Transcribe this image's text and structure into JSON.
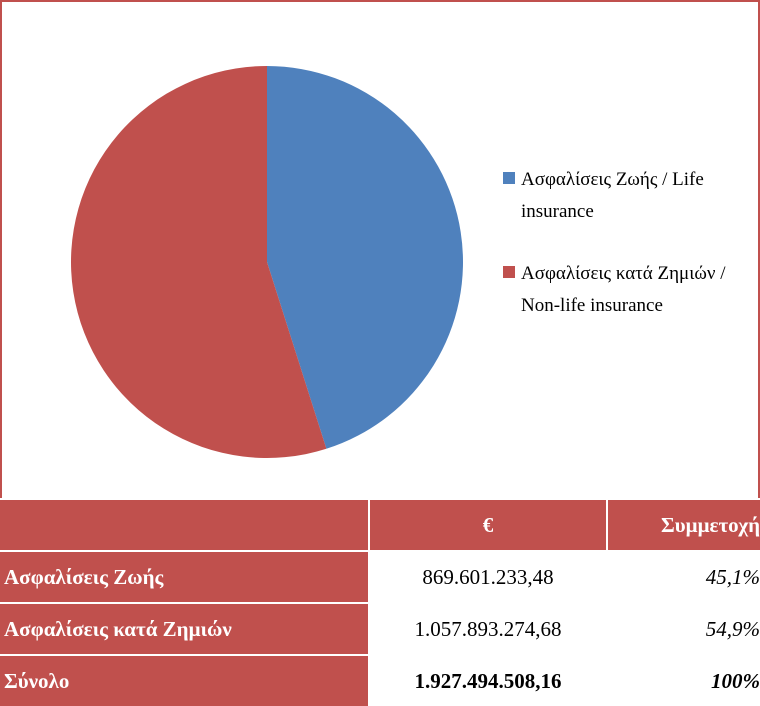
{
  "chart_data": {
    "type": "pie",
    "categories": [
      "Ασφαλίσεις Ζωής / Life insurance",
      "Ασφαλίσεις κατά Ζημιών / Non-life insurance"
    ],
    "values": [
      45.1,
      54.9
    ],
    "colors": [
      "#4f81bd",
      "#c0504d"
    ],
    "legend": "right"
  },
  "table": {
    "header": [
      "€",
      "Συμμετοχή"
    ],
    "rows": [
      [
        "Ασφαλίσεις Ζωής",
        "869.601.233,48",
        "45,1%"
      ],
      [
        "Ασφαλίσεις κατά Ζημιών",
        "1.057.893.274,68",
        "54,9%"
      ],
      [
        "Σύνολο",
        "1.927.494.508,16",
        "100%"
      ]
    ]
  }
}
